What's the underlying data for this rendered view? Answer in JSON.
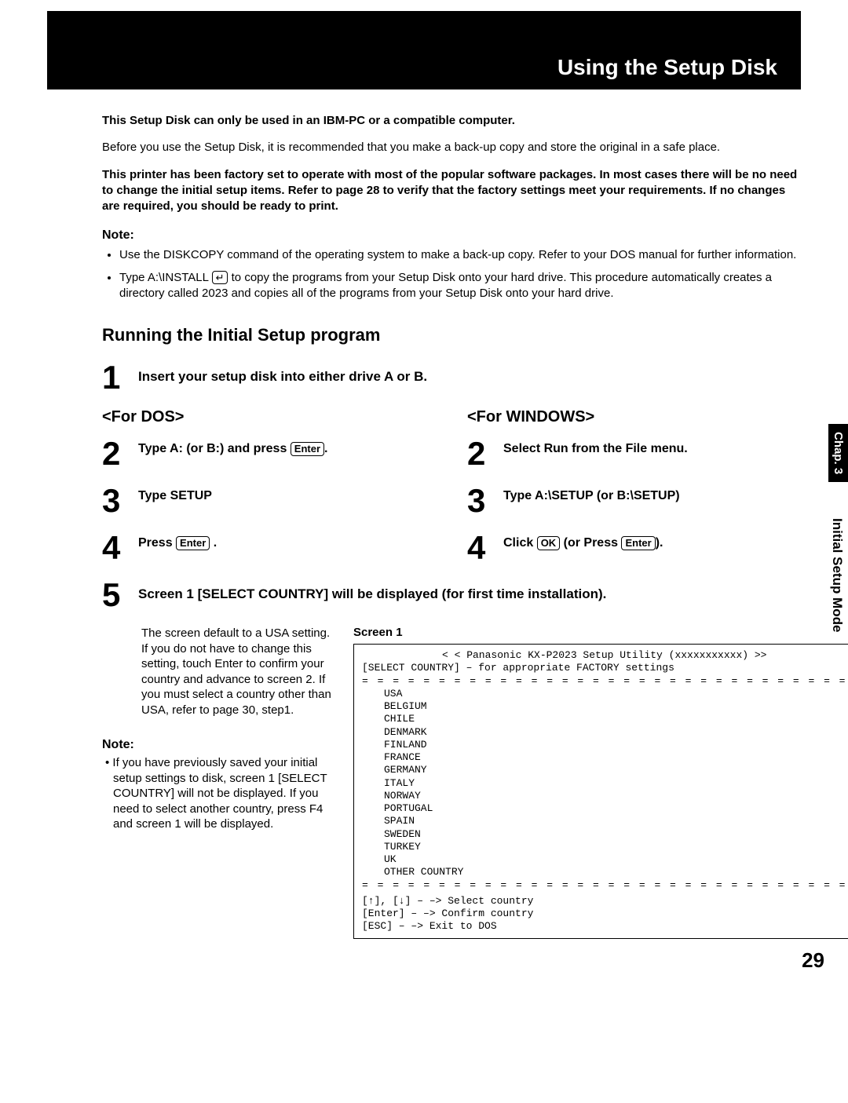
{
  "header": {
    "title": "Using the Setup Disk"
  },
  "intro": {
    "p1_bold": "This Setup Disk can only be used in an IBM-PC or a compatible computer.",
    "p2": "Before you use the Setup Disk, it is recommended that you make a back-up copy and store the original in a safe place.",
    "p3_bold": "This printer has been factory set to operate with most of the popular software packages. In most cases there will be no need to change the initial setup items. Refer to page 28 to verify that the factory settings meet your requirements. If no changes are required, you should be ready to print."
  },
  "note": {
    "label": "Note:",
    "items": [
      "Use the DISKCOPY command of the operating system to make a back-up copy. Refer to your DOS manual for further information.",
      "Type A:\\INSTALL "
    ],
    "item2_key": "↵",
    "item2_tail": " to copy the programs from your Setup Disk onto your hard drive. This procedure automatically creates a directory called 2023 and copies all of the programs from your Setup Disk onto your hard drive."
  },
  "section_title": "Running the Initial Setup program",
  "step1": {
    "num": "1",
    "text": "Insert your setup disk into either drive A or B."
  },
  "dos": {
    "head": "<For DOS>",
    "s2": {
      "num": "2",
      "text_a": "Type  A:  (or B:) and press ",
      "key": "Enter",
      "text_b": "."
    },
    "s3": {
      "num": "3",
      "text": "Type  SETUP"
    },
    "s4": {
      "num": "4",
      "text_a": "Press ",
      "key": "Enter",
      "text_b": " ."
    }
  },
  "win": {
    "head": "<For WINDOWS>",
    "s2": {
      "num": "2",
      "text": "Select  Run  from the File menu."
    },
    "s3": {
      "num": "3",
      "text": "Type  A:\\SETUP  (or B:\\SETUP)"
    },
    "s4": {
      "num": "4",
      "text_a": "Click ",
      "key1": "OK",
      "text_b": " (or Press ",
      "key2": "Enter",
      "text_c": ")."
    }
  },
  "step5": {
    "num": "5",
    "title": "Screen 1 [SELECT COUNTRY] will be displayed (for first time installation).",
    "desc": "The screen default to a USA setting. If you do not have to change this setting, touch Enter to confirm your country and advance to screen 2. If you must select a country other than USA, refer to page 30, step1.",
    "note_label": "Note:",
    "note_text": "• If you have previously saved your initial setup settings to disk, screen 1 [SELECT COUNTRY] will not be displayed. If you need to select another country, press F4 and screen 1 will be displayed."
  },
  "screen1": {
    "label": "Screen 1",
    "title_line": "< <     Panasonic KX-P2023 Setup Utility (xxxxxxxxxxx)     >>",
    "subtitle": "[SELECT COUNTRY] – for appropriate FACTORY settings",
    "divider": "= = = = = = = = = = = = = = = = = = = = = = = = = = = = = = = =",
    "countries": [
      "USA",
      "BELGIUM",
      "CHILE",
      "DENMARK",
      "FINLAND",
      "FRANCE",
      "GERMANY",
      "ITALY",
      "NORWAY",
      "PORTUGAL",
      "SPAIN",
      "SWEDEN",
      "TURKEY",
      "UK",
      "OTHER COUNTRY"
    ],
    "hints": [
      "[↑], [↓]     – –>  Select country",
      "[Enter]       – –>  Confirm country",
      "[ESC]         – –>  Exit to DOS"
    ]
  },
  "side": {
    "tab": "Chap. 3",
    "label": "Initial Setup Mode"
  },
  "page_number": "29"
}
